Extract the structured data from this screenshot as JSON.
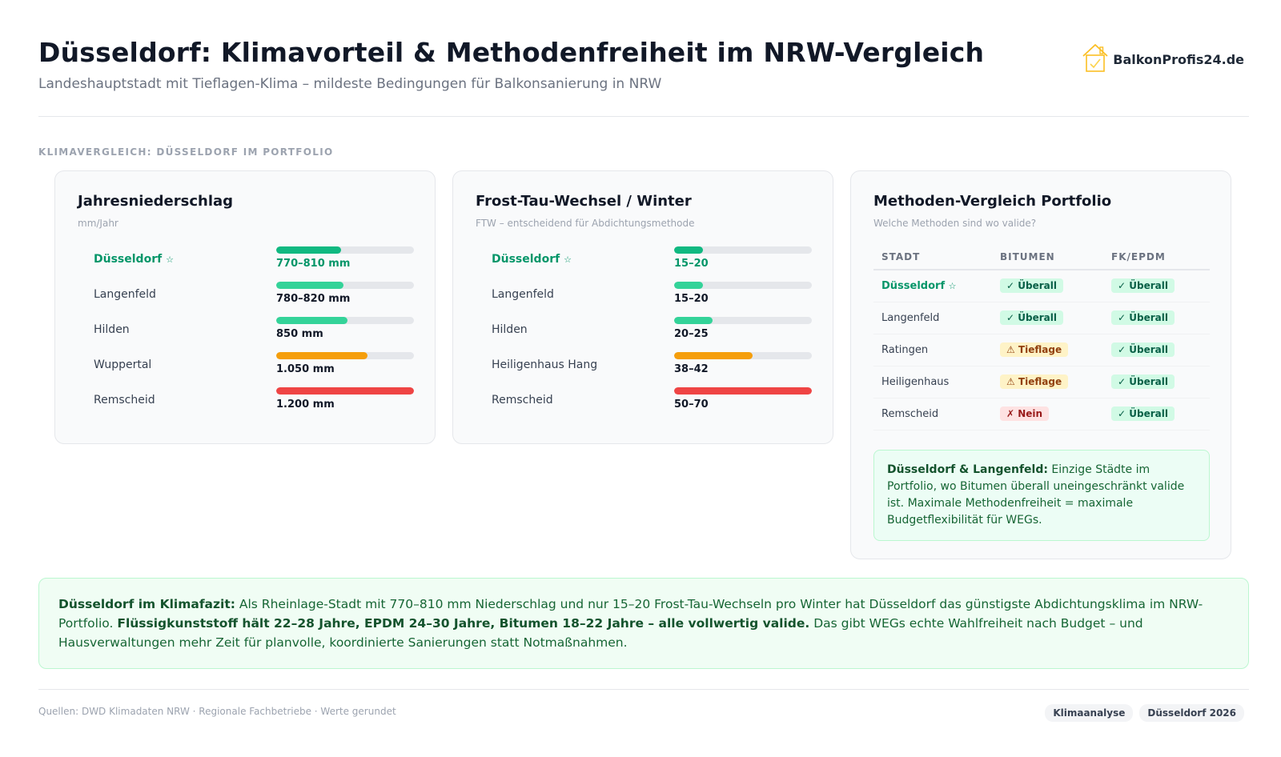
{
  "header": {
    "title": "Düsseldorf: Klimavorteil & Methodenfreiheit im NRW-Vergleich",
    "subtitle": "Landeshauptstadt mit Tieflagen-Klima – mildeste Bedingungen für Balkonsanierung in NRW",
    "logo_text": "BalkonProfis24.de",
    "logo_icon": "house-check-icon"
  },
  "section_label": "KLIMAVERGLEICH: DÜSSELDORF IM PORTFOLIO",
  "precip_card": {
    "title": "Jahresniederschlag",
    "subtitle": "mm/Jahr",
    "rows": [
      {
        "city": "Düsseldorf",
        "star": "☆",
        "value": "770–810 mm",
        "level": 0.47,
        "color": "#10b981",
        "highlight": true
      },
      {
        "city": "Langenfeld",
        "star": "",
        "value": "780–820 mm",
        "level": 0.49,
        "color": "#34d399",
        "highlight": false
      },
      {
        "city": "Hilden",
        "star": "",
        "value": "850 mm",
        "level": 0.52,
        "color": "#34d399",
        "highlight": false
      },
      {
        "city": "Wuppertal",
        "star": "",
        "value": "1.050 mm",
        "level": 0.66,
        "color": "#f59e0b",
        "highlight": false
      },
      {
        "city": "Remscheid",
        "star": "",
        "value": "1.200 mm",
        "level": 1.0,
        "color": "#ef4444",
        "highlight": false
      }
    ]
  },
  "ftw_card": {
    "title": "Frost-Tau-Wechsel / Winter",
    "subtitle": "FTW – entscheidend für Abdichtungsmethode",
    "rows": [
      {
        "city": "Düsseldorf",
        "star": "☆",
        "value": "15–20",
        "level": 0.21,
        "color": "#10b981",
        "highlight": true
      },
      {
        "city": "Langenfeld",
        "star": "",
        "value": "15–20",
        "level": 0.21,
        "color": "#34d399",
        "highlight": false
      },
      {
        "city": "Hilden",
        "star": "",
        "value": "20–25",
        "level": 0.28,
        "color": "#34d399",
        "highlight": false
      },
      {
        "city": "Heiligenhaus Hang",
        "star": "",
        "value": "38–42",
        "level": 0.57,
        "color": "#f59e0b",
        "highlight": false
      },
      {
        "city": "Remscheid",
        "star": "",
        "value": "50–70",
        "level": 1.0,
        "color": "#ef4444",
        "highlight": false
      }
    ]
  },
  "methods_card": {
    "title": "Methoden-Vergleich Portfolio",
    "subtitle": "Welche Methoden sind wo valide?",
    "columns": [
      "STADT",
      "BITUMEN",
      "FK/EPDM"
    ],
    "rows": [
      {
        "city": "Düsseldorf",
        "star": "☆",
        "highlight": true,
        "bitumen": "✓ Überall",
        "bitumen_status": "ok",
        "fk": "✓ Überall",
        "fk_status": "ok"
      },
      {
        "city": "Langenfeld",
        "star": "",
        "highlight": false,
        "bitumen": "✓ Überall",
        "bitumen_status": "ok",
        "fk": "✓ Überall",
        "fk_status": "ok"
      },
      {
        "city": "Ratingen",
        "star": "",
        "highlight": false,
        "bitumen": "⚠ Tieflage",
        "bitumen_status": "warn",
        "fk": "✓ Überall",
        "fk_status": "ok"
      },
      {
        "city": "Heiligenhaus",
        "star": "",
        "highlight": false,
        "bitumen": "⚠ Tieflage",
        "bitumen_status": "warn",
        "fk": "✓ Überall",
        "fk_status": "ok"
      },
      {
        "city": "Remscheid",
        "star": "",
        "highlight": false,
        "bitumen": "✗ Nein",
        "bitumen_status": "no",
        "fk": "✓ Überall",
        "fk_status": "ok"
      }
    ],
    "note_bold": "Düsseldorf & Langenfeld:",
    "note_text": " Einzige Städte im Portfolio, wo Bitumen überall uneingeschränkt valide ist. Maximale Methodenfreiheit = maximale Budgetflexibilität für WEGs."
  },
  "summary": {
    "bold1": "Düsseldorf im Klimafazit:",
    "text1": " Als Rheinlage-Stadt mit 770–810 mm Niederschlag und nur 15–20 Frost-Tau-Wechseln pro Winter hat Düsseldorf das günstigste Abdichtungsklima im NRW-Portfolio. ",
    "bold2": "Flüssigkunststoff hält 22–28 Jahre, EPDM 24–30 Jahre, Bitumen 18–22 Jahre – alle vollwertig valide.",
    "text2": " Das gibt WEGs echte Wahlfreiheit nach Budget – und Hausverwaltungen mehr Zeit für planvolle, koordinierte Sanierungen statt Notmaßnahmen."
  },
  "footer": {
    "sources": "Quellen: DWD Klimadaten NRW · Regionale Fachbetriebe · Werte gerundet",
    "tags": [
      "Klimaanalyse",
      "Düsseldorf 2026"
    ]
  },
  "colors": {
    "accent_green": "#10b981",
    "light_green": "#34d399",
    "warning": "#f59e0b",
    "danger": "#ef4444"
  }
}
